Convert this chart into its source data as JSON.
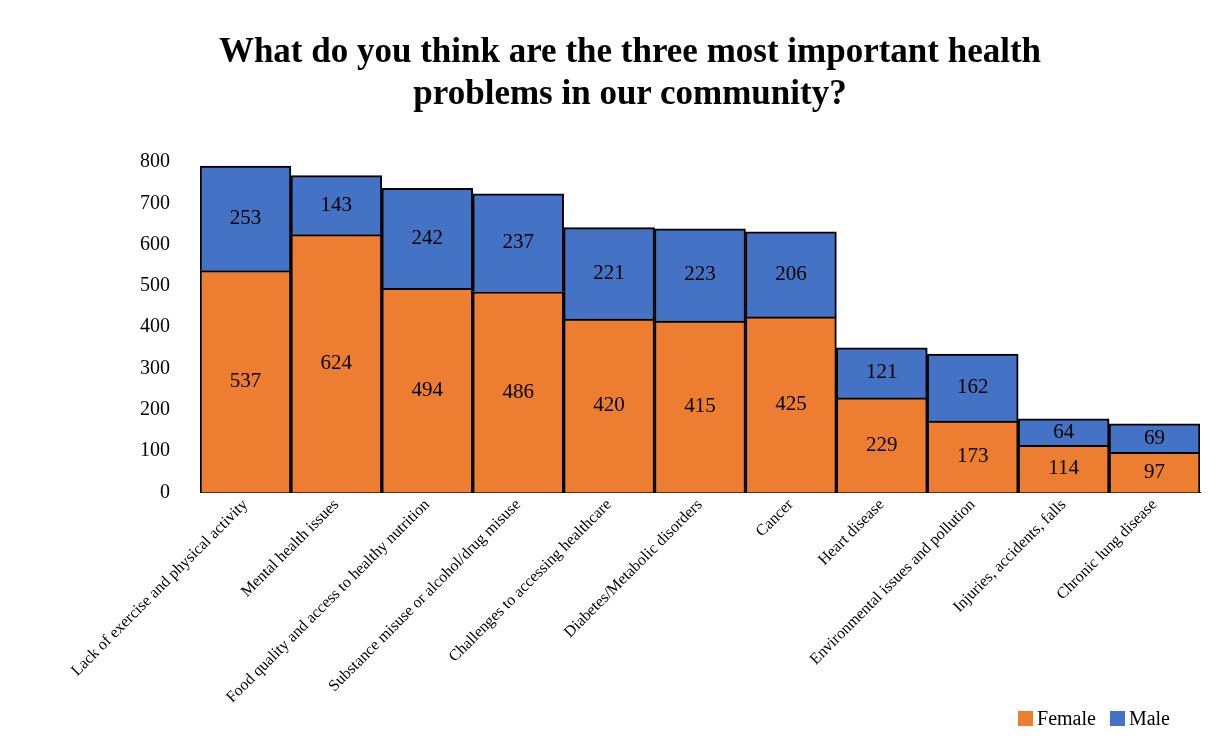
{
  "chart_data": {
    "type": "bar",
    "title": "What do you think are the three most important health problems in our community?",
    "categories": [
      "Lack of exercise and physical activity",
      "Mental health issues",
      "Food quality and access to healthy nutrition",
      "Substance misuse or alcohol/drug misuse",
      "Challenges to accessing healthcare",
      "Diabetes/Metabolic disorders",
      "Cancer",
      "Heart disease",
      "Environmental issues and pollution",
      "Injuries, accidents, falls",
      "Chronic lung disease"
    ],
    "series": [
      {
        "name": "Female",
        "color": "#ed7d31",
        "values": [
          537,
          624,
          494,
          486,
          420,
          415,
          425,
          229,
          173,
          114,
          97
        ]
      },
      {
        "name": "Male",
        "color": "#4472c4",
        "values": [
          253,
          143,
          242,
          237,
          221,
          223,
          206,
          121,
          162,
          64,
          69
        ]
      }
    ],
    "stacked": true,
    "ylim": [
      0,
      800
    ],
    "yticks": [
      0,
      100,
      200,
      300,
      400,
      500,
      600,
      700,
      800
    ],
    "grid": false,
    "legend": "bottom right",
    "data_labels": true
  }
}
